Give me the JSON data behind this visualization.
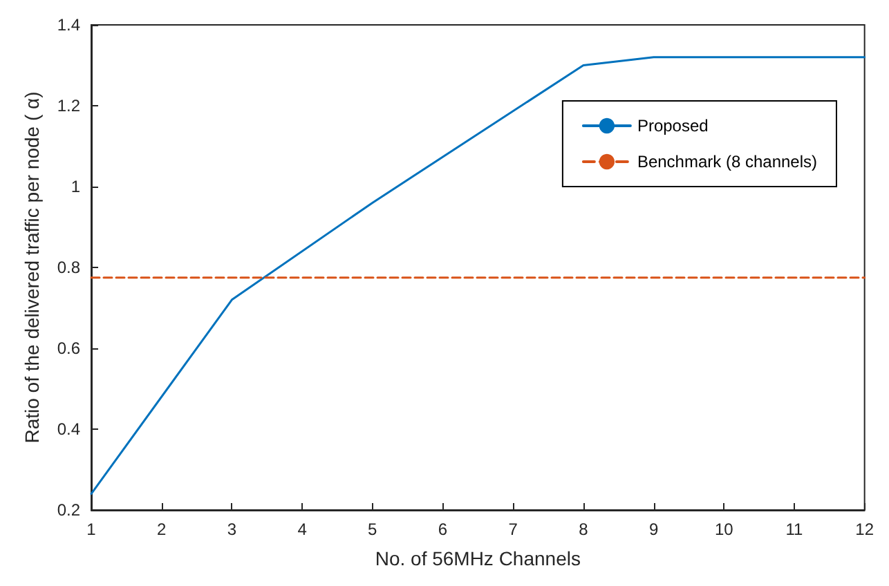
{
  "chart_data": {
    "type": "line",
    "xlabel": "No. of 56MHz Channels",
    "ylabel": "Ratio of the delivered traffic per node ( α)",
    "xlim": [
      1,
      12
    ],
    "xticks": [
      1,
      2,
      3,
      4,
      5,
      6,
      7,
      8,
      9,
      10,
      11,
      12
    ],
    "ylim": [
      0.2,
      1.4
    ],
    "yticks": [
      0.2,
      0.4,
      0.6,
      0.8,
      1,
      1.2,
      1.4
    ],
    "legend": "top right",
    "grid": false,
    "marker": "none",
    "series": [
      {
        "name": "Proposed",
        "color": "#0072bd",
        "line_style": "solid",
        "x": [
          1,
          3,
          5,
          8,
          9,
          12
        ],
        "values": [
          0.24,
          0.72,
          0.96,
          1.3,
          1.32,
          1.32
        ]
      },
      {
        "name": "Benchmark (8 channels)",
        "color": "#d95319",
        "line_style": "dashed",
        "x": [
          1,
          12
        ],
        "values": [
          0.775,
          0.775
        ]
      }
    ]
  }
}
